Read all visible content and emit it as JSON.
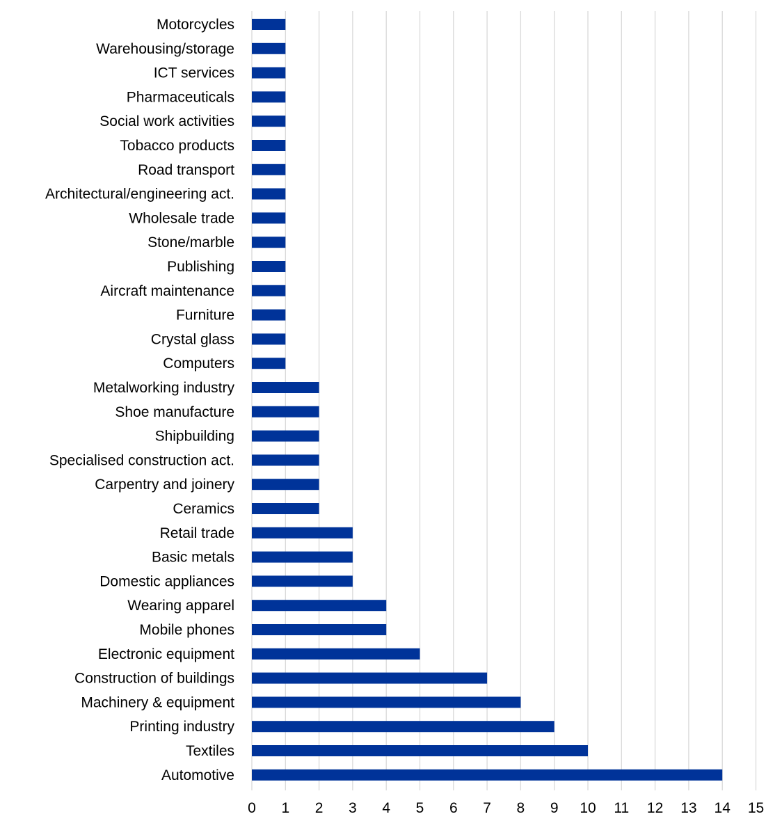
{
  "chart_data": {
    "type": "bar",
    "orientation": "horizontal",
    "title": "",
    "xlabel": "",
    "ylabel": "",
    "xlim": [
      0,
      15
    ],
    "x_ticks": [
      "0",
      "1",
      "2",
      "3",
      "4",
      "5",
      "6",
      "7",
      "8",
      "9",
      "10",
      "11",
      "12",
      "13",
      "14",
      "15"
    ],
    "grid": "vertical",
    "legend": "none",
    "bar_color": "#003399",
    "grid_color": "#d9d9d9",
    "categories": [
      "Motorcycles",
      "Warehousing/storage",
      "ICT services",
      "Pharmaceuticals",
      "Social work activities",
      "Tobacco products",
      "Road transport",
      "Architectural/engineering act.",
      "Wholesale trade",
      "Stone/marble",
      "Publishing",
      "Aircraft maintenance",
      "Furniture",
      "Crystal glass",
      "Computers",
      "Metalworking industry",
      "Shoe manufacture",
      "Shipbuilding",
      "Specialised construction act.",
      "Carpentry and joinery",
      "Ceramics",
      "Retail trade",
      "Basic metals",
      "Domestic appliances",
      "Wearing apparel",
      "Mobile phones",
      "Electronic equipment",
      "Construction of buildings",
      "Machinery & equipment",
      "Printing industry",
      "Textiles",
      "Automotive"
    ],
    "values": [
      1,
      1,
      1,
      1,
      1,
      1,
      1,
      1,
      1,
      1,
      1,
      1,
      1,
      1,
      1,
      2,
      2,
      2,
      2,
      2,
      2,
      3,
      3,
      3,
      4,
      4,
      5,
      7,
      8,
      9,
      10,
      14
    ]
  }
}
